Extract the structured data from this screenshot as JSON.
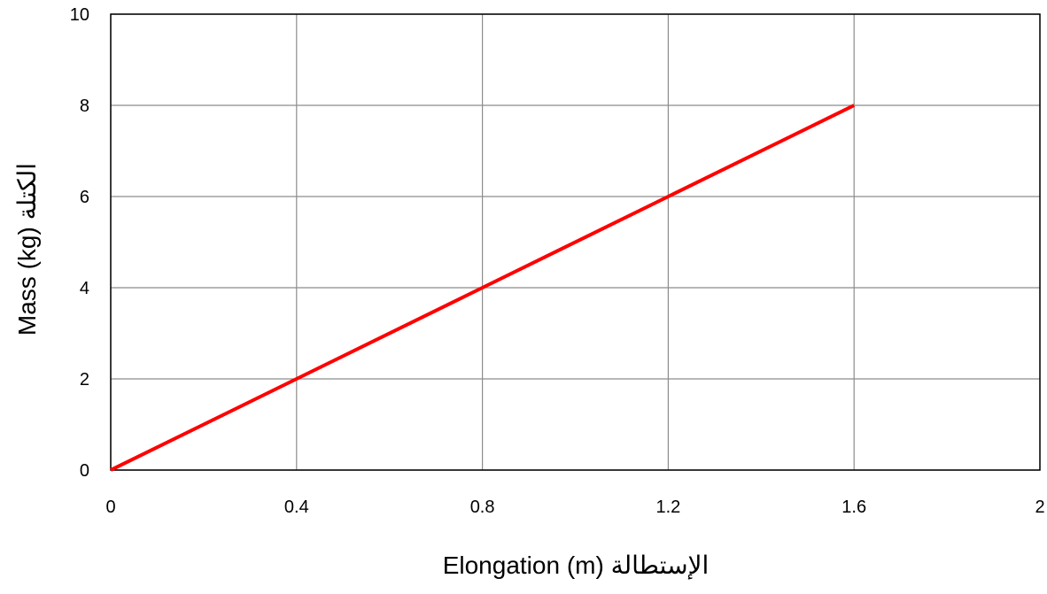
{
  "chart_data": {
    "type": "line",
    "title": "",
    "xlabel": "Elongation (m)  الإستطالة",
    "ylabel": "Mass  (kg) الكتلة",
    "xlim": [
      0,
      2
    ],
    "ylim": [
      0,
      10
    ],
    "x_ticks": [
      "0",
      "0.4",
      "0.8",
      "1.2",
      "1.6",
      "2"
    ],
    "y_ticks": [
      "0",
      "2",
      "4",
      "6",
      "8",
      "10"
    ],
    "grid": true,
    "legend": "none",
    "series": [
      {
        "color": "#ff0000",
        "x": [
          0,
          0.4,
          0.8,
          1.2,
          1.6
        ],
        "y": [
          0,
          2,
          4,
          6,
          8
        ]
      }
    ]
  }
}
